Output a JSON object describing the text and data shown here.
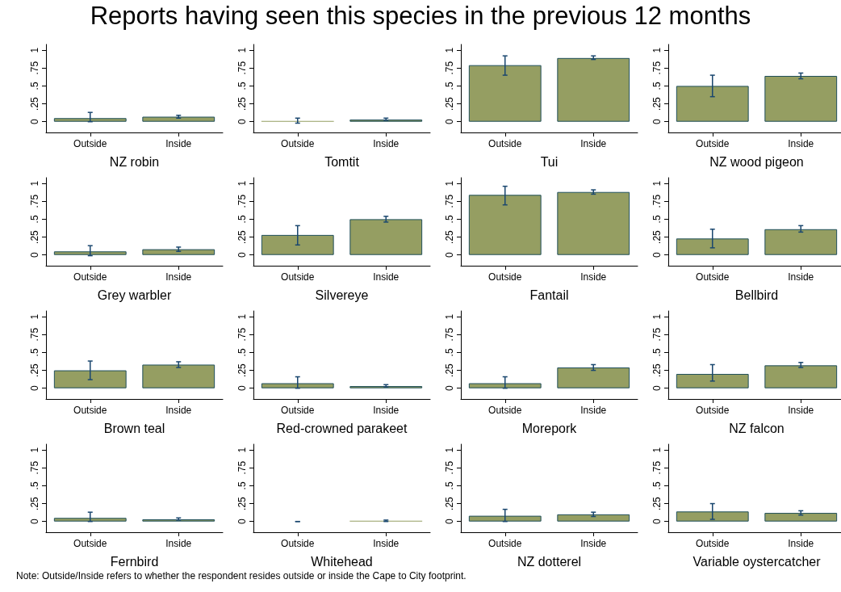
{
  "chart_data": [
    {
      "type": "bar",
      "title": "Reports having seen this species in the previous 12 months",
      "xlabel": "NZ robin",
      "categories": [
        "Outside",
        "Inside"
      ],
      "values": [
        0.05,
        0.07
      ],
      "errors": [
        [
          0,
          0.13
        ],
        [
          0.05,
          0.09
        ]
      ],
      "color": "#959e62",
      "ylim": [
        -0.15,
        1.08
      ],
      "yticks": [
        {
          "value": 0,
          "label": "0"
        },
        {
          "value": 0.25,
          "label": ".25"
        },
        {
          "value": 0.5,
          "label": ".5"
        },
        {
          "value": 0.75,
          "label": ".75"
        },
        {
          "value": 1,
          "label": "1"
        }
      ]
    },
    {
      "type": "bar",
      "xlabel": "Tomtit",
      "categories": [
        "Outside",
        "Inside"
      ],
      "values": [
        0.01,
        0.03
      ],
      "errors": [
        [
          -0.02,
          0.05
        ],
        [
          0.02,
          0.05
        ]
      ],
      "color": "#959e62",
      "ylim": [
        -0.15,
        1.08
      ],
      "yticks": [
        {
          "value": 0,
          "label": "0"
        },
        {
          "value": 0.25,
          "label": ".25"
        },
        {
          "value": 0.5,
          "label": ".5"
        },
        {
          "value": 0.75,
          "label": ".75"
        },
        {
          "value": 1,
          "label": "1"
        }
      ]
    },
    {
      "type": "bar",
      "xlabel": "Tui",
      "categories": [
        "Outside",
        "Inside"
      ],
      "values": [
        0.79,
        0.89
      ],
      "errors": [
        [
          0.65,
          0.92
        ],
        [
          0.87,
          0.92
        ]
      ],
      "color": "#959e62",
      "ylim": [
        -0.15,
        1.08
      ],
      "yticks": [
        {
          "value": 0,
          "label": "0"
        },
        {
          "value": 0.25,
          "label": ".25"
        },
        {
          "value": 0.5,
          "label": ".5"
        },
        {
          "value": 0.75,
          "label": ".75"
        },
        {
          "value": 1,
          "label": "1"
        }
      ]
    },
    {
      "type": "bar",
      "xlabel": "NZ wood pigeon",
      "categories": [
        "Outside",
        "Inside"
      ],
      "values": [
        0.5,
        0.64
      ],
      "errors": [
        [
          0.35,
          0.65
        ],
        [
          0.6,
          0.68
        ]
      ],
      "color": "#959e62",
      "ylim": [
        -0.15,
        1.08
      ],
      "yticks": [
        {
          "value": 0,
          "label": "0"
        },
        {
          "value": 0.25,
          "label": ".25"
        },
        {
          "value": 0.5,
          "label": ".5"
        },
        {
          "value": 0.75,
          "label": ".75"
        },
        {
          "value": 1,
          "label": "1"
        }
      ]
    },
    {
      "type": "bar",
      "xlabel": "Grey warbler",
      "categories": [
        "Outside",
        "Inside"
      ],
      "values": [
        0.05,
        0.08
      ],
      "errors": [
        [
          -0.01,
          0.13
        ],
        [
          0.05,
          0.11
        ]
      ],
      "color": "#959e62",
      "ylim": [
        -0.15,
        1.08
      ],
      "yticks": [
        {
          "value": 0,
          "label": "0"
        },
        {
          "value": 0.25,
          "label": ".25"
        },
        {
          "value": 0.5,
          "label": ".5"
        },
        {
          "value": 0.75,
          "label": ".75"
        },
        {
          "value": 1,
          "label": "1"
        }
      ]
    },
    {
      "type": "bar",
      "xlabel": "Silvereye",
      "categories": [
        "Outside",
        "Inside"
      ],
      "values": [
        0.28,
        0.5
      ],
      "errors": [
        [
          0.14,
          0.41
        ],
        [
          0.46,
          0.54
        ]
      ],
      "color": "#959e62",
      "ylim": [
        -0.15,
        1.08
      ],
      "yticks": [
        {
          "value": 0,
          "label": "0"
        },
        {
          "value": 0.25,
          "label": ".25"
        },
        {
          "value": 0.5,
          "label": ".5"
        },
        {
          "value": 0.75,
          "label": ".75"
        },
        {
          "value": 1,
          "label": "1"
        }
      ]
    },
    {
      "type": "bar",
      "xlabel": "Fantail",
      "categories": [
        "Outside",
        "Inside"
      ],
      "values": [
        0.84,
        0.88
      ],
      "errors": [
        [
          0.7,
          0.96
        ],
        [
          0.85,
          0.91
        ]
      ],
      "color": "#959e62",
      "ylim": [
        -0.15,
        1.08
      ],
      "yticks": [
        {
          "value": 0,
          "label": "0"
        },
        {
          "value": 0.25,
          "label": ".25"
        },
        {
          "value": 0.5,
          "label": ".5"
        },
        {
          "value": 0.75,
          "label": ".75"
        },
        {
          "value": 1,
          "label": "1"
        }
      ]
    },
    {
      "type": "bar",
      "xlabel": "Bellbird",
      "categories": [
        "Outside",
        "Inside"
      ],
      "values": [
        0.23,
        0.36
      ],
      "errors": [
        [
          0.1,
          0.36
        ],
        [
          0.32,
          0.41
        ]
      ],
      "color": "#959e62",
      "ylim": [
        -0.15,
        1.08
      ],
      "yticks": [
        {
          "value": 0,
          "label": "0"
        },
        {
          "value": 0.25,
          "label": ".25"
        },
        {
          "value": 0.5,
          "label": ".5"
        },
        {
          "value": 0.75,
          "label": ".75"
        },
        {
          "value": 1,
          "label": "1"
        }
      ]
    },
    {
      "type": "bar",
      "xlabel": "Brown teal",
      "categories": [
        "Outside",
        "Inside"
      ],
      "values": [
        0.25,
        0.33
      ],
      "errors": [
        [
          0.12,
          0.38
        ],
        [
          0.29,
          0.37
        ]
      ],
      "color": "#959e62",
      "ylim": [
        -0.15,
        1.08
      ],
      "yticks": [
        {
          "value": 0,
          "label": "0"
        },
        {
          "value": 0.25,
          "label": ".25"
        },
        {
          "value": 0.5,
          "label": ".5"
        },
        {
          "value": 0.75,
          "label": ".75"
        },
        {
          "value": 1,
          "label": "1"
        }
      ]
    },
    {
      "type": "bar",
      "xlabel": "Red-crowned parakeet",
      "categories": [
        "Outside",
        "Inside"
      ],
      "values": [
        0.07,
        0.03
      ],
      "errors": [
        [
          0,
          0.16
        ],
        [
          0.02,
          0.05
        ]
      ],
      "color": "#959e62",
      "ylim": [
        -0.15,
        1.08
      ],
      "yticks": [
        {
          "value": 0,
          "label": "0"
        },
        {
          "value": 0.25,
          "label": ".25"
        },
        {
          "value": 0.5,
          "label": ".5"
        },
        {
          "value": 0.75,
          "label": ".75"
        },
        {
          "value": 1,
          "label": "1"
        }
      ]
    },
    {
      "type": "bar",
      "xlabel": "Morepork",
      "categories": [
        "Outside",
        "Inside"
      ],
      "values": [
        0.07,
        0.29
      ],
      "errors": [
        [
          0,
          0.16
        ],
        [
          0.25,
          0.33
        ]
      ],
      "color": "#959e62",
      "ylim": [
        -0.15,
        1.08
      ],
      "yticks": [
        {
          "value": 0,
          "label": "0"
        },
        {
          "value": 0.25,
          "label": ".25"
        },
        {
          "value": 0.5,
          "label": ".5"
        },
        {
          "value": 0.75,
          "label": ".75"
        },
        {
          "value": 1,
          "label": "1"
        }
      ]
    },
    {
      "type": "bar",
      "xlabel": "NZ falcon",
      "categories": [
        "Outside",
        "Inside"
      ],
      "values": [
        0.2,
        0.32
      ],
      "errors": [
        [
          0.1,
          0.33
        ],
        [
          0.29,
          0.36
        ]
      ],
      "color": "#959e62",
      "ylim": [
        -0.15,
        1.08
      ],
      "yticks": [
        {
          "value": 0,
          "label": "0"
        },
        {
          "value": 0.25,
          "label": ".25"
        },
        {
          "value": 0.5,
          "label": ".5"
        },
        {
          "value": 0.75,
          "label": ".75"
        },
        {
          "value": 1,
          "label": "1"
        }
      ]
    },
    {
      "type": "bar",
      "xlabel": "Fernbird",
      "categories": [
        "Outside",
        "Inside"
      ],
      "values": [
        0.05,
        0.03
      ],
      "errors": [
        [
          0,
          0.13
        ],
        [
          0.02,
          0.05
        ]
      ],
      "color": "#959e62",
      "ylim": [
        -0.15,
        1.08
      ],
      "yticks": [
        {
          "value": 0,
          "label": "0"
        },
        {
          "value": 0.25,
          "label": ".25"
        },
        {
          "value": 0.5,
          "label": ".5"
        },
        {
          "value": 0.75,
          "label": ".75"
        },
        {
          "value": 1,
          "label": "1"
        }
      ]
    },
    {
      "type": "bar",
      "xlabel": "Whitehead",
      "categories": [
        "Outside",
        "Inside"
      ],
      "values": [
        0,
        0.01
      ],
      "errors": [
        [
          0,
          0
        ],
        [
          0,
          0.02
        ]
      ],
      "color": "#959e62",
      "ylim": [
        -0.15,
        1.08
      ],
      "yticks": [
        {
          "value": 0,
          "label": "0"
        },
        {
          "value": 0.25,
          "label": ".25"
        },
        {
          "value": 0.5,
          "label": ".5"
        },
        {
          "value": 0.75,
          "label": ".75"
        },
        {
          "value": 1,
          "label": "1"
        }
      ]
    },
    {
      "type": "bar",
      "xlabel": "NZ dotterel",
      "categories": [
        "Outside",
        "Inside"
      ],
      "values": [
        0.08,
        0.1
      ],
      "errors": [
        [
          0,
          0.17
        ],
        [
          0.07,
          0.13
        ]
      ],
      "color": "#959e62",
      "ylim": [
        -0.15,
        1.08
      ],
      "yticks": [
        {
          "value": 0,
          "label": "0"
        },
        {
          "value": 0.25,
          "label": ".25"
        },
        {
          "value": 0.5,
          "label": ".5"
        },
        {
          "value": 0.75,
          "label": ".75"
        },
        {
          "value": 1,
          "label": "1"
        }
      ]
    },
    {
      "type": "bar",
      "xlabel": "Variable oystercatcher",
      "categories": [
        "Outside",
        "Inside"
      ],
      "values": [
        0.14,
        0.12
      ],
      "errors": [
        [
          0.03,
          0.25
        ],
        [
          0.09,
          0.15
        ]
      ],
      "color": "#959e62",
      "ylim": [
        -0.15,
        1.08
      ],
      "yticks": [
        {
          "value": 0,
          "label": "0"
        },
        {
          "value": 0.25,
          "label": ".25"
        },
        {
          "value": 0.5,
          "label": ".5"
        },
        {
          "value": 0.75,
          "label": ".75"
        },
        {
          "value": 1,
          "label": "1"
        }
      ],
      "annotations": [
        "Note: Outside/Inside refers to whether the respondent resides outside or inside the Cape to City footprint."
      ]
    }
  ]
}
